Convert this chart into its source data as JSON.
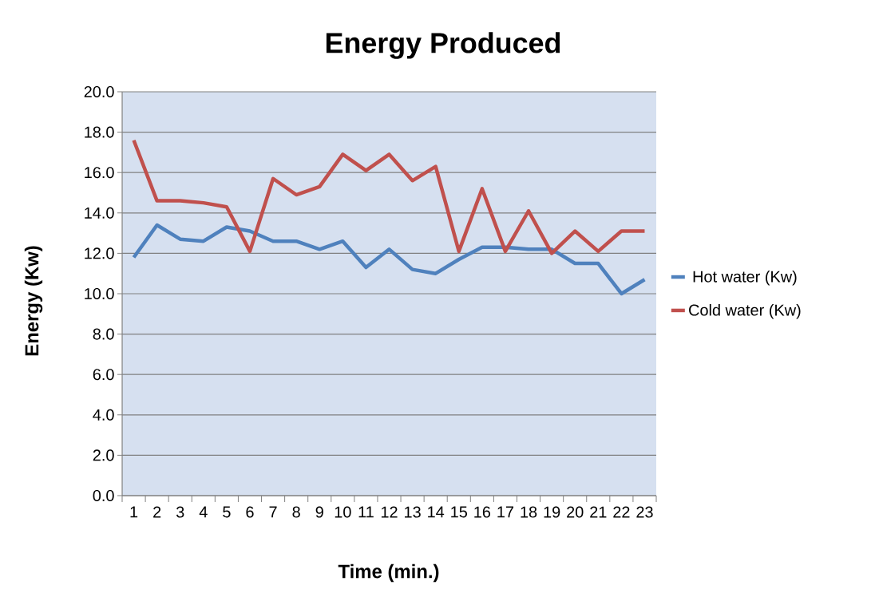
{
  "chart_data": {
    "type": "line",
    "title": "Energy Produced",
    "xlabel": "Time (min.)",
    "ylabel": "Energy (Kw)",
    "categories": [
      "1",
      "2",
      "3",
      "4",
      "5",
      "6",
      "7",
      "8",
      "9",
      "10",
      "11",
      "12",
      "13",
      "14",
      "15",
      "16",
      "17",
      "18",
      "19",
      "20",
      "21",
      "22",
      "23"
    ],
    "series": [
      {
        "name": "Hot water (Kw)",
        "color": "#4f81bd",
        "values": [
          11.8,
          13.4,
          12.7,
          12.6,
          13.3,
          13.1,
          12.6,
          12.6,
          12.2,
          12.6,
          11.3,
          12.2,
          11.2,
          11.0,
          11.7,
          12.3,
          12.3,
          12.2,
          12.2,
          11.5,
          11.5,
          10.0,
          10.7
        ]
      },
      {
        "name": "Cold water (Kw)",
        "color": "#c0504d",
        "values": [
          17.6,
          14.6,
          14.6,
          14.5,
          14.3,
          12.1,
          15.7,
          14.9,
          15.3,
          16.9,
          16.1,
          16.9,
          15.6,
          16.3,
          12.1,
          15.2,
          12.1,
          14.1,
          12.0,
          13.1,
          12.1,
          13.1,
          13.1
        ]
      }
    ],
    "ylim": [
      0,
      20
    ],
    "yticks": [
      {
        "value": 0,
        "label": "0.0"
      },
      {
        "value": 2,
        "label": "2.0"
      },
      {
        "value": 4,
        "label": "4.0"
      },
      {
        "value": 6,
        "label": "6.0"
      },
      {
        "value": 8,
        "label": "8.0"
      },
      {
        "value": 10,
        "label": "10.0"
      },
      {
        "value": 12,
        "label": "12.0"
      },
      {
        "value": 14,
        "label": "14.0"
      },
      {
        "value": 16,
        "label": "16.0"
      },
      {
        "value": 18,
        "label": "18.0"
      },
      {
        "value": 20,
        "label": "20.0"
      }
    ],
    "grid": "y",
    "legend": "right"
  }
}
